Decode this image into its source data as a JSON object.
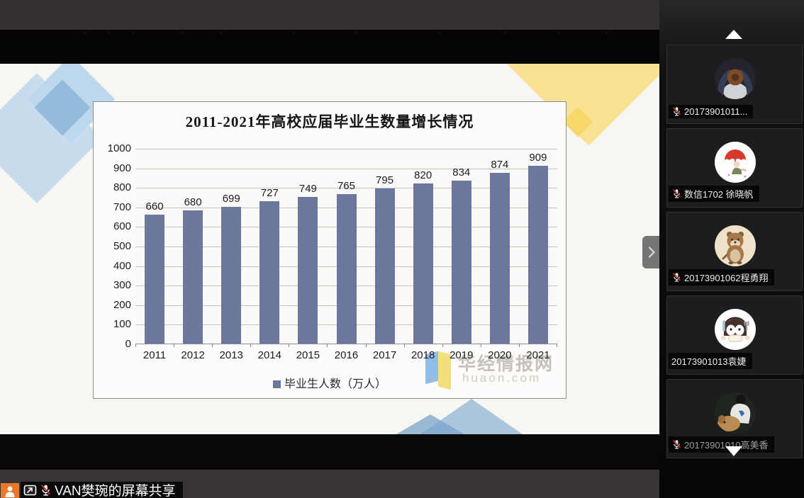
{
  "share_banner": {
    "label": "VAN樊琬的屏幕共享",
    "icons": {
      "member": "person-icon",
      "share": "screen-share-icon",
      "mic": "mic-muted-icon"
    }
  },
  "sidebar": {
    "scroll_up_icon": "triangle-up",
    "scroll_down_icon": "triangle-down",
    "participants": [
      {
        "name": "20173901011...",
        "muted": true,
        "dim": false,
        "avatar": "person-top-view"
      },
      {
        "name": "数信1702 徐晓帆",
        "muted": true,
        "dim": false,
        "avatar": "girl-red-umbrella"
      },
      {
        "name": "20173901062程勇翔",
        "muted": true,
        "dim": false,
        "avatar": "cartoon-otter"
      },
      {
        "name": "20173901013袁婕",
        "muted": false,
        "dim": false,
        "avatar": "penguin-cutlery"
      },
      {
        "name": "20173901010高美香",
        "muted": true,
        "dim": true,
        "avatar": "person-with-dog"
      }
    ]
  },
  "chart_data": {
    "type": "bar",
    "title": "2011-2021年高校应届毕业生数量增长情况",
    "categories": [
      "2011",
      "2012",
      "2013",
      "2014",
      "2015",
      "2016",
      "2017",
      "2018",
      "2019",
      "2020",
      "2021"
    ],
    "values": [
      660,
      680,
      699,
      727,
      749,
      765,
      795,
      820,
      834,
      874,
      909
    ],
    "legend": "毕业生人数（万人）",
    "xlabel": "",
    "ylabel": "",
    "ylim": [
      0,
      1000
    ],
    "ytick_step": 100,
    "grid": true,
    "legend_position": "bottom",
    "bar_color": "#6b779d",
    "watermark": {
      "name": "华经情报网",
      "domain": "huaon.com"
    }
  },
  "colors": {
    "accent_orange": "#e8782a",
    "muted_red": "#c03a2d",
    "bar_blue": "#6b779d",
    "handle_gray": "#757575"
  }
}
